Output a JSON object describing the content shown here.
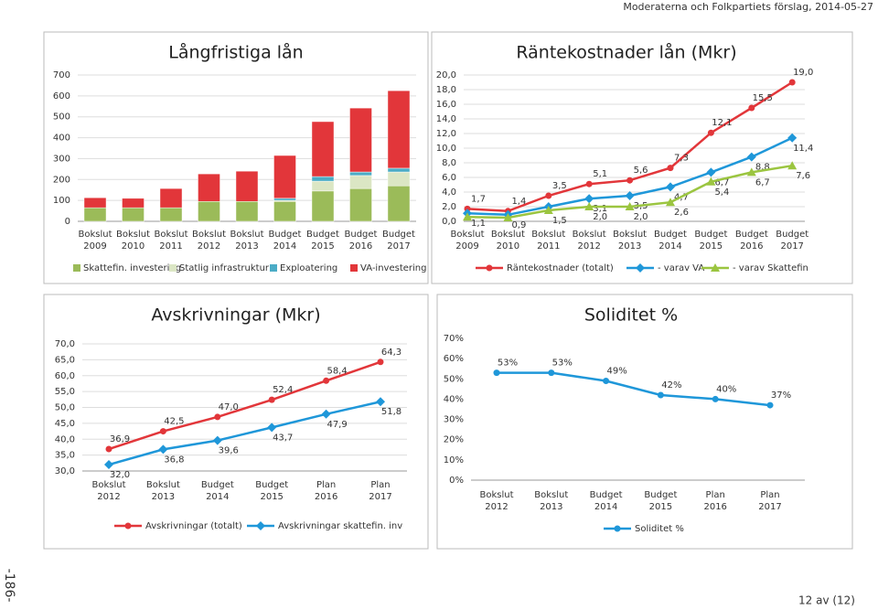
{
  "header": "Moderaterna och Folkpartiets förslag, 2014-05-27",
  "footer": {
    "page": "12 av (12)",
    "side": "-186-"
  },
  "chart_data": [
    {
      "type": "bar",
      "stacked": true,
      "title": "Långfristiga lån",
      "grid": true,
      "legend": "bottom",
      "categories": [
        "Bokslut 2009",
        "Bokslut 2010",
        "Bokslut 2011",
        "Bokslut 2012",
        "Bokslut 2013",
        "Budget 2014",
        "Budget 2015",
        "Budget 2016",
        "Budget 2017"
      ],
      "series": [
        {
          "name": "Skattefin. investering",
          "color": "#9bbb59",
          "values": [
            65,
            65,
            65,
            95,
            95,
            95,
            145,
            157,
            170
          ]
        },
        {
          "name": "Statlig infrastruktur",
          "color": "#dbe6c4",
          "values": [
            0,
            0,
            0,
            0,
            0,
            5,
            47,
            62,
            66
          ]
        },
        {
          "name": "Exploatering",
          "color": "#4bacc6",
          "values": [
            0,
            0,
            0,
            0,
            0,
            10,
            22,
            17,
            18
          ]
        },
        {
          "name": "VA-investering",
          "color": "#e2363a",
          "values": [
            48,
            45,
            92,
            132,
            145,
            205,
            263,
            306,
            371
          ]
        }
      ],
      "ylim": [
        0,
        700
      ],
      "yticks": [
        0,
        100,
        200,
        300,
        400,
        500,
        600,
        700
      ]
    },
    {
      "type": "line",
      "title": "Räntekostnader lån (Mkr)",
      "grid": true,
      "legend": "bottom",
      "categories": [
        "Bokslut 2009",
        "Bokslut 2010",
        "Bokslut 2011",
        "Bokslut 2012",
        "Bokslut 2013",
        "Budget 2014",
        "Budget 2015",
        "Budget 2016",
        "Budget 2017"
      ],
      "series": [
        {
          "name": "Räntekostnader (totalt)",
          "color": "#e2363a",
          "marker": "circle",
          "values": [
            1.7,
            1.4,
            3.5,
            5.1,
            5.6,
            7.3,
            12.1,
            15.5,
            19.0
          ],
          "value_labels": [
            "1,7",
            "1,4",
            "3,5",
            "5,1",
            "5,6",
            "7,3",
            "12,1",
            "15,5",
            "19,0"
          ]
        },
        {
          "name": "- varav VA",
          "color": "#1f97d9",
          "marker": "diamond",
          "values": [
            1.1,
            0.9,
            2.0,
            3.1,
            3.5,
            4.7,
            6.7,
            8.8,
            11.4
          ],
          "value_labels": [
            "1,1",
            "0,9",
            null,
            "3,1",
            "3,5",
            "4,7",
            "6,7",
            "8,8",
            "11,4"
          ]
        },
        {
          "name": "- varav Skattefin",
          "color": "#9bc540",
          "marker": "triangle",
          "values": [
            0.6,
            0.5,
            1.5,
            2.0,
            2.0,
            2.6,
            5.4,
            6.7,
            7.6
          ],
          "value_labels": [
            null,
            null,
            "1,5",
            "2,0",
            "2,0",
            "2,6",
            "5,4",
            "6,7",
            "7,6"
          ]
        }
      ],
      "ylim": [
        0,
        20
      ],
      "yticks": [
        {
          "value": 0,
          "label": "0,0"
        },
        {
          "value": 2,
          "label": "2,0"
        },
        {
          "value": 4,
          "label": "4,0"
        },
        {
          "value": 6,
          "label": "6,0"
        },
        {
          "value": 8,
          "label": "8,0"
        },
        {
          "value": 10,
          "label": "10,0"
        },
        {
          "value": 12,
          "label": "12,0"
        },
        {
          "value": 14,
          "label": "14,0"
        },
        {
          "value": 16,
          "label": "16,0"
        },
        {
          "value": 18,
          "label": "18,0"
        },
        {
          "value": 20,
          "label": "20,0"
        }
      ]
    },
    {
      "type": "line",
      "title": "Avskrivningar (Mkr)",
      "grid": true,
      "legend": "bottom",
      "categories": [
        "Bokslut 2012",
        "Bokslut 2013",
        "Budget 2014",
        "Budget 2015",
        "Plan 2016",
        "Plan 2017"
      ],
      "series": [
        {
          "name": "Avskrivningar (totalt)",
          "color": "#e2363a",
          "marker": "circle",
          "values": [
            36.9,
            42.5,
            47.0,
            52.4,
            58.4,
            64.3
          ],
          "value_labels": [
            "36,9",
            "42,5",
            "47,0",
            "52,4",
            "58,4",
            "64,3"
          ]
        },
        {
          "name": "Avskrivningar skattefin. inv",
          "color": "#1f97d9",
          "marker": "diamond",
          "values": [
            32.0,
            36.8,
            39.6,
            43.7,
            47.9,
            51.8
          ],
          "value_labels": [
            "32,0",
            "36,8",
            "39,6",
            "43,7",
            "47,9",
            "51,8"
          ]
        }
      ],
      "ylim": [
        30,
        70
      ],
      "yticks": [
        {
          "value": 30,
          "label": "30,0"
        },
        {
          "value": 35,
          "label": "35,0"
        },
        {
          "value": 40,
          "label": "40,0"
        },
        {
          "value": 45,
          "label": "45,0"
        },
        {
          "value": 50,
          "label": "50,0"
        },
        {
          "value": 55,
          "label": "55,0"
        },
        {
          "value": 60,
          "label": "60,0"
        },
        {
          "value": 65,
          "label": "65,0"
        },
        {
          "value": 70,
          "label": "70,0"
        }
      ]
    },
    {
      "type": "line",
      "title": "Soliditet %",
      "grid": false,
      "legend": "bottom",
      "categories": [
        "Bokslut 2012",
        "Bokslut 2013",
        "Budget 2014",
        "Budget 2015",
        "Plan 2016",
        "Plan 2017"
      ],
      "series": [
        {
          "name": "Soliditet %",
          "color": "#1f97d9",
          "marker": "circle",
          "values": [
            53,
            53,
            49,
            42,
            40,
            37
          ],
          "value_labels": [
            "53%",
            "53%",
            "49%",
            "42%",
            "40%",
            "37%"
          ]
        }
      ],
      "ylim": [
        0,
        70
      ],
      "yticks": [
        {
          "value": 0,
          "label": "0%"
        },
        {
          "value": 10,
          "label": "10%"
        },
        {
          "value": 20,
          "label": "20%"
        },
        {
          "value": 30,
          "label": "30%"
        },
        {
          "value": 40,
          "label": "40%"
        },
        {
          "value": 50,
          "label": "50%"
        },
        {
          "value": 60,
          "label": "60%"
        },
        {
          "value": 70,
          "label": "70%"
        }
      ]
    }
  ]
}
